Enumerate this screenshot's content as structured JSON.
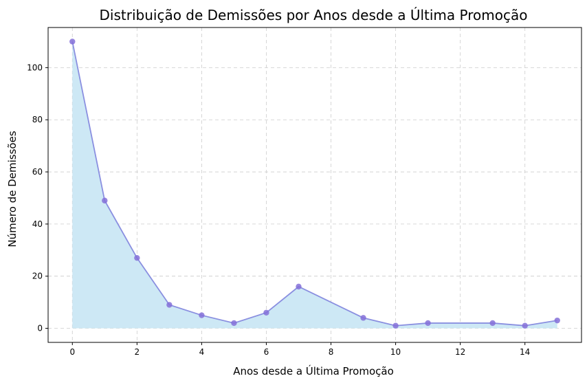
{
  "chart_data": {
    "type": "area",
    "title": "Distribuição de Demissões por Anos desde a Última Promoção",
    "xlabel": "Anos desde a Última Promoção",
    "ylabel": "Número de Demissões",
    "x": [
      0,
      1,
      2,
      3,
      4,
      5,
      6,
      7,
      9,
      10,
      11,
      13,
      14,
      15
    ],
    "series": [
      {
        "values": [
          110,
          49,
          27,
          9,
          5,
          2,
          6,
          16,
          4,
          1,
          2,
          2,
          1,
          3
        ]
      }
    ],
    "xlim": [
      -0.75,
      15.75
    ],
    "ylim": [
      -5.4,
      115.4
    ],
    "xticks": [
      0,
      2,
      4,
      6,
      8,
      10,
      12,
      14
    ],
    "yticks": [
      0,
      20,
      40,
      60,
      80,
      100
    ],
    "grid": true,
    "line_color": "#8A8FE0",
    "marker_color": "#8470D8",
    "fill_color": "#CDE8F5"
  }
}
